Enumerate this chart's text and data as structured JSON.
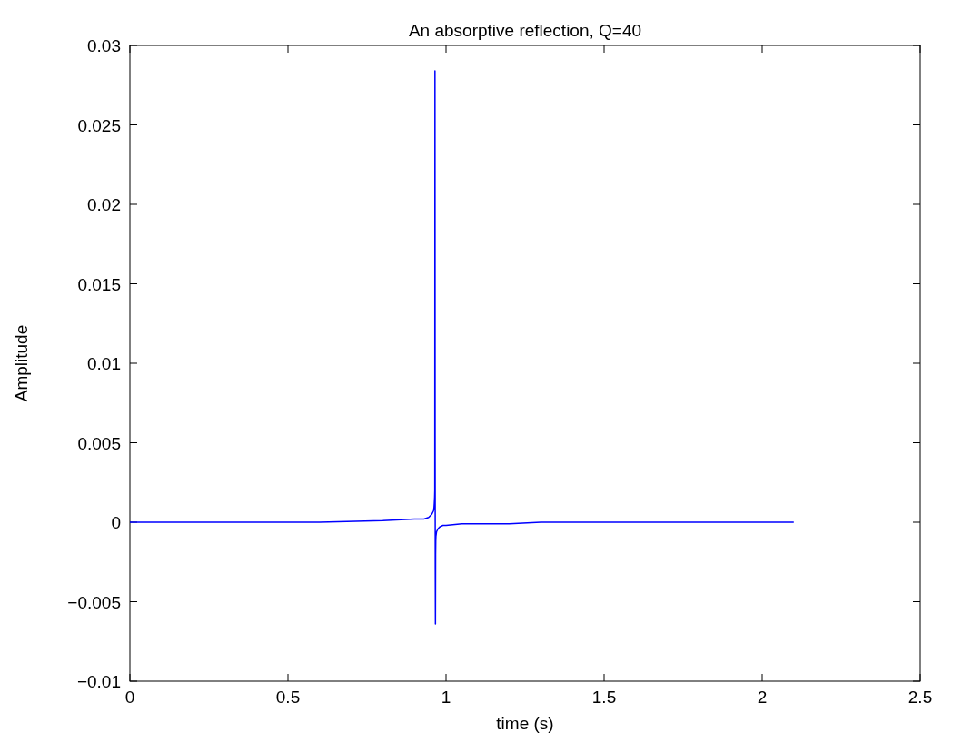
{
  "chart_data": {
    "type": "line",
    "title": "An absorptive reflection, Q=40",
    "xlabel": "time (s)",
    "ylabel": "Amplitude",
    "xlim": [
      0,
      2.5
    ],
    "xticks": [
      0,
      0.5,
      1,
      1.5,
      2,
      2.5
    ],
    "ylim": [
      -0.01,
      0.03
    ],
    "yticks": [
      {
        "value": -0.01,
        "label": "−0.01"
      },
      {
        "value": -0.005,
        "label": "−0.005"
      },
      0,
      0.005,
      0.01,
      0.015,
      0.02,
      0.025,
      0.03
    ],
    "grid": false,
    "line_style": "solid",
    "series": [
      {
        "color": "#0000ff",
        "x": [
          0,
          0.2,
          0.4,
          0.6,
          0.8,
          0.9,
          0.93,
          0.945,
          0.955,
          0.96,
          0.962,
          0.963,
          0.964,
          0.9645,
          0.965,
          0.9655,
          0.966,
          0.9665,
          0.967,
          0.9675,
          0.968,
          0.97,
          0.975,
          0.98,
          0.99,
          1.0,
          1.05,
          1.1,
          1.2,
          1.3,
          1.5,
          1.7,
          1.9,
          2.1
        ],
        "values": [
          0,
          0,
          0,
          0,
          0.0001,
          0.0002,
          0.0002,
          0.0003,
          0.0005,
          0.0007,
          0.0009,
          0.0012,
          0.0016,
          0.002,
          0.0284,
          0.005,
          -0.003,
          -0.0064,
          -0.002,
          -0.0012,
          -0.0009,
          -0.0006,
          -0.0004,
          -0.0003,
          -0.0002,
          -0.0002,
          -0.0001,
          -0.0001,
          -0.0001,
          0,
          0,
          0,
          0,
          0
        ]
      }
    ]
  }
}
